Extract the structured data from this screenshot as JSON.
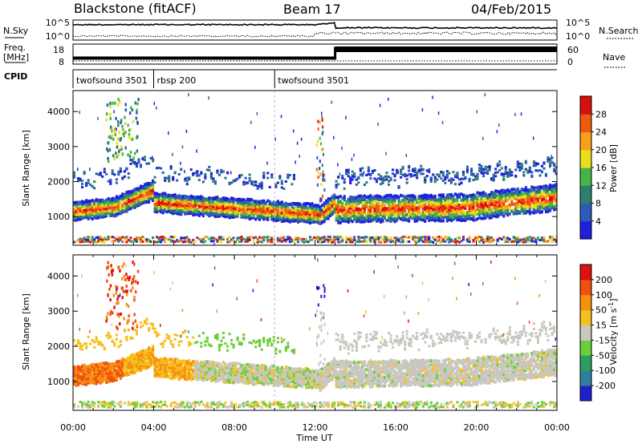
{
  "header": {
    "station": "Blackstone (fitACF)",
    "beam": "Beam 17",
    "date": "04/Feb/2015"
  },
  "side_labels": {
    "nsky": "N.Sky",
    "nsearch": "N.Search",
    "freq_line1": "Freq.",
    "freq_line2": "[MHz]",
    "nave": "Nave",
    "cpid": "CPID"
  },
  "noise_panel": {
    "left_ticks": [
      "10^5",
      "10^0"
    ],
    "right_ticks": [
      "10^5",
      "10^0"
    ]
  },
  "freq_panel": {
    "left_ticks": [
      "18",
      "8"
    ],
    "right_ticks": [
      "60",
      "0"
    ]
  },
  "cpid_panel": {
    "segments": [
      {
        "label": "twofsound 3501",
        "start_hour": 0
      },
      {
        "label": "rbsp 200",
        "start_hour": 4
      },
      {
        "label": "twofsound 3501",
        "start_hour": 10
      }
    ]
  },
  "chart_data": [
    {
      "type": "heatmap",
      "name": "power",
      "ylabel": "Slant Range [km]",
      "ylim": [
        180,
        4600
      ],
      "yticks": [
        "1000",
        "2000",
        "3000",
        "4000"
      ],
      "colorbar_label": "Power [dB]",
      "colorbar_ticks": [
        "4",
        "8",
        "12",
        "16",
        "20",
        "24",
        "28"
      ],
      "colorbar_range": [
        0,
        32
      ],
      "colors": [
        "#1f1fe0",
        "#2e5ab8",
        "#2d7f6f",
        "#45b54a",
        "#e9de1c",
        "#f8a018",
        "#f05a10",
        "#d80f0f"
      ]
    },
    {
      "type": "heatmap",
      "name": "velocity",
      "ylabel": "Slant Range [km]",
      "ylim": [
        180,
        4600
      ],
      "yticks": [
        "1000",
        "2000",
        "3000",
        "4000"
      ],
      "colorbar_label": "Velocity [m s^-1]",
      "colorbar_ticks": [
        "200",
        "100",
        "50",
        "15",
        "-15",
        "-50",
        "-100",
        "-200"
      ],
      "colors": [
        "#1f1fd0",
        "#2f7fa0",
        "#2aa060",
        "#6ccd3a",
        "#c8c8c0",
        "#f6c020",
        "#f59010",
        "#f05010",
        "#e01010"
      ]
    }
  ],
  "x_axis": {
    "label": "Time UT",
    "ticks": [
      "00:00",
      "04:00",
      "08:00",
      "12:00",
      "16:00",
      "20:00",
      "00:00"
    ],
    "range_hours": [
      0,
      24
    ]
  }
}
